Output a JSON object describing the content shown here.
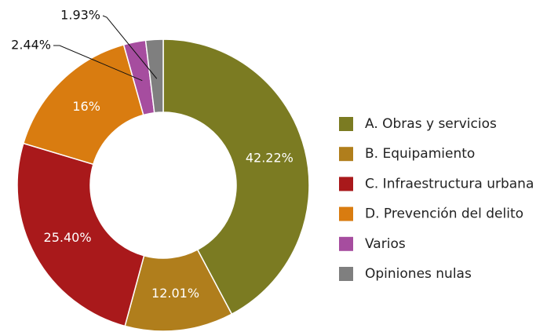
{
  "chart_data": {
    "type": "donut",
    "categories": [
      "A. Obras y servicios",
      "B. Equipamiento",
      "C. Infraestructura urbana",
      "D. Prevención del delito",
      "Varios",
      "Opiniones nulas"
    ],
    "values": [
      42.22,
      12.01,
      25.4,
      16,
      2.44,
      1.93
    ],
    "value_labels": [
      "42.22%",
      "12.01%",
      "25.40%",
      "16%",
      "2.44%",
      "1.93%"
    ],
    "colors": [
      "#7b7b22",
      "#b07e1c",
      "#a9191b",
      "#d97c10",
      "#a64d9f",
      "#7f7f7f"
    ],
    "legend": "right"
  }
}
